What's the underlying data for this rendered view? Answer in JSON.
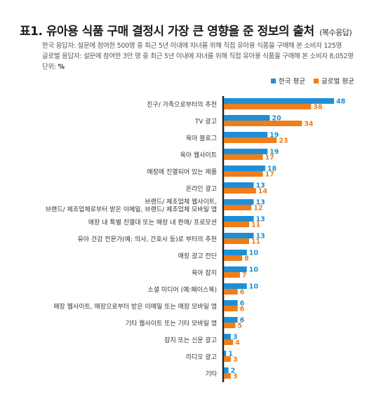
{
  "header": {
    "title": "표1. 유아용 식품 구매 결정시 가장 큰 영향을 준 정보의 출처",
    "subtitle": "(복수응답)"
  },
  "notes": {
    "korea": "한국 응답자: 설문에 참여한 500명 중 최근 5년 이내에 자녀를 위해 직접 유아용 식품을 구매해 본 소비자 125명",
    "global": "글로벌 응답자: 설문에 참여한 3만 명 중 최근 5년 이내에 자녀를 위해 직접 유아용 식품을 구매해 본 소비자 8,052명",
    "unit_label": "단위:",
    "unit_value": "%"
  },
  "colors": {
    "korea": "#1e8fd6",
    "global": "#ef7d1a",
    "axis": "#222222"
  },
  "chart_data": {
    "type": "bar",
    "orientation": "horizontal",
    "categories": [
      "친구/ 가족으로부터의 추천",
      "TV 광고",
      "육아 블로그",
      "육아 웹사이트",
      "매장에 진열되어 있는 제품",
      "온라인 광고",
      "브랜드/ 제조업체 웹사이트,\n브랜드/ 제조업체로부터 받은 이메일, 브랜드/ 제조업체 모바일 앱",
      "매장 내 특별 진열대 또는 매장 내 판매/ 프로모션",
      "유아 건강 전문가(예: 의사, 간호사 등)로 부터의 추천",
      "매장 광고 전단",
      "육아 잡지",
      "소셜 미디어 (예:페이스북)",
      "매장 웹사이트, 매장으로부터 받은 이메일 또는 매장 모바일 앱",
      "기타 웹사이트 또는 기타 모바일 앱",
      "잡지 또는 신문 광고",
      "라디오 광고",
      "기타"
    ],
    "series": [
      {
        "name": "한국 평균",
        "values": [
          48,
          20,
          19,
          19,
          18,
          13,
          13,
          13,
          13,
          10,
          10,
          10,
          6,
          6,
          3,
          1,
          2
        ]
      },
      {
        "name": "글로벌 평균",
        "values": [
          38,
          34,
          23,
          17,
          17,
          14,
          12,
          11,
          11,
          8,
          7,
          6,
          6,
          5,
          4,
          3,
          3
        ]
      }
    ],
    "xlim": [
      0,
      48
    ],
    "legend_position": "top-right",
    "grid": false
  }
}
